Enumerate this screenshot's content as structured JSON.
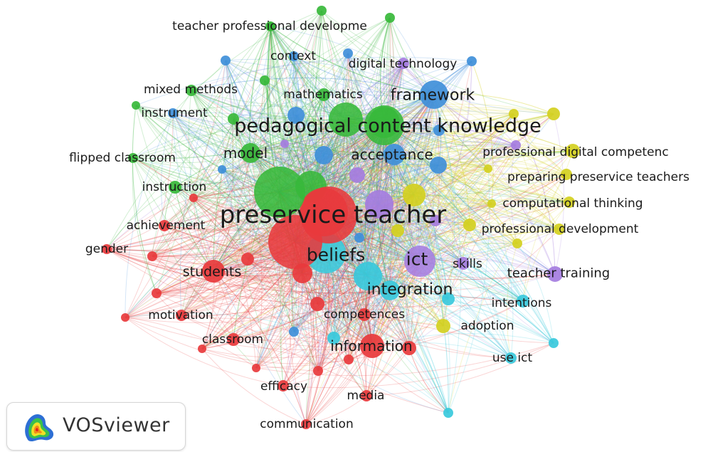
{
  "app": {
    "name": "VOSviewer"
  },
  "colors": {
    "red": "#e8393c",
    "green": "#37b83a",
    "blue": "#3f8fd9",
    "yellow": "#d4d020",
    "purple": "#a57de0",
    "cyan": "#38c9dc"
  },
  "nodes": [
    {
      "id": "preservice_teacher",
      "label": "preservice teacher",
      "cluster": "red",
      "weight": 100
    },
    {
      "id": "beliefs",
      "label": "beliefs",
      "cluster": "cyan",
      "weight": 42
    },
    {
      "id": "pedagogical_content_knowledge",
      "label": "pedagogical content knowledge",
      "cluster": "green",
      "weight": 45
    },
    {
      "id": "ict",
      "label": "ict",
      "cluster": "purple",
      "weight": 30
    },
    {
      "id": "framework",
      "label": "framework",
      "cluster": "blue",
      "weight": 26
    },
    {
      "id": "students",
      "label": "students",
      "cluster": "red",
      "weight": 24
    },
    {
      "id": "integration",
      "label": "integration",
      "cluster": "cyan",
      "weight": 28
    },
    {
      "id": "information",
      "label": "information",
      "cluster": "red",
      "weight": 22
    },
    {
      "id": "model",
      "label": "model",
      "cluster": "green",
      "weight": 18
    },
    {
      "id": "acceptance",
      "label": "acceptance",
      "cluster": "blue",
      "weight": 18
    },
    {
      "id": "teacher_training",
      "label": "teacher training",
      "cluster": "purple",
      "weight": 16
    },
    {
      "id": "professional_digital_competence",
      "label": "professional digital competenc",
      "cluster": "yellow",
      "weight": 14
    },
    {
      "id": "preparing_preservice_teachers",
      "label": "preparing preservice teachers",
      "cluster": "yellow",
      "weight": 12
    },
    {
      "id": "computational_thinking",
      "label": "computational thinking",
      "cluster": "yellow",
      "weight": 12
    },
    {
      "id": "professional_development",
      "label": "professional development",
      "cluster": "yellow",
      "weight": 12
    },
    {
      "id": "skills",
      "label": "skills",
      "cluster": "purple",
      "weight": 12
    },
    {
      "id": "intentions",
      "label": "intentions",
      "cluster": "cyan",
      "weight": 12
    },
    {
      "id": "adoption",
      "label": "adoption",
      "cluster": "yellow",
      "weight": 12
    },
    {
      "id": "use_ict",
      "label": "use ict",
      "cluster": "cyan",
      "weight": 10
    },
    {
      "id": "competences",
      "label": "competences",
      "cluster": "red",
      "weight": 12
    },
    {
      "id": "classroom",
      "label": "classroom",
      "cluster": "red",
      "weight": 11
    },
    {
      "id": "motivation",
      "label": "motivation",
      "cluster": "red",
      "weight": 11
    },
    {
      "id": "gender",
      "label": "gender",
      "cluster": "red",
      "weight": 10
    },
    {
      "id": "achievement",
      "label": "achievement",
      "cluster": "red",
      "weight": 11
    },
    {
      "id": "efficacy",
      "label": "efficacy",
      "cluster": "red",
      "weight": 11
    },
    {
      "id": "media",
      "label": "media",
      "cluster": "red",
      "weight": 11
    },
    {
      "id": "communication",
      "label": "communication",
      "cluster": "red",
      "weight": 10
    },
    {
      "id": "instruction",
      "label": "instruction",
      "cluster": "green",
      "weight": 12
    },
    {
      "id": "flipped_classroom",
      "label": "flipped classroom",
      "cluster": "green",
      "weight": 11
    },
    {
      "id": "instrument",
      "label": "instrument",
      "cluster": "blue",
      "weight": 11
    },
    {
      "id": "mixed_methods",
      "label": "mixed methods",
      "cluster": "green",
      "weight": 11
    },
    {
      "id": "mathematics",
      "label": "mathematics",
      "cluster": "green",
      "weight": 12
    },
    {
      "id": "context",
      "label": "context",
      "cluster": "blue",
      "weight": 10
    },
    {
      "id": "digital_technology",
      "label": "digital technology",
      "cluster": "purple",
      "weight": 11
    },
    {
      "id": "teacher_professional_development",
      "label": "teacher professional developme",
      "cluster": "green",
      "weight": 11
    }
  ]
}
